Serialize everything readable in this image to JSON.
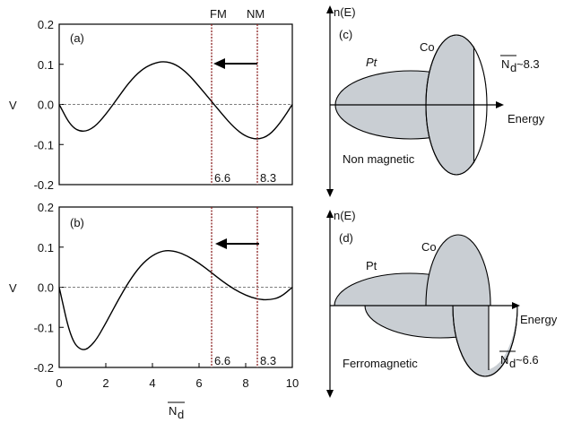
{
  "chart_data": [
    {
      "type": "line",
      "panel": "(a)",
      "ylabel": "V",
      "xlim": [
        0,
        10
      ],
      "ylim": [
        -0.2,
        0.2
      ],
      "yticks": [
        "0.2",
        "0.1",
        "0.0",
        "-0.1",
        "-0.2"
      ],
      "xticks": [],
      "top_labels": {
        "fm": "FM",
        "nm": "NM"
      },
      "markers": {
        "fm": "6.6",
        "nm": "8.3"
      },
      "series": [
        {
          "x": [
            0,
            0.5,
            1,
            1.5,
            2,
            2.5,
            3,
            3.5,
            4,
            4.5,
            5,
            5.5,
            6,
            6.5,
            7,
            7.5,
            8,
            8.5,
            9,
            9.5,
            10
          ],
          "values": [
            0,
            -0.055,
            -0.07,
            -0.058,
            -0.025,
            0.015,
            0.055,
            0.085,
            0.102,
            0.108,
            0.1,
            0.078,
            0.045,
            0.01,
            -0.025,
            -0.058,
            -0.08,
            -0.088,
            -0.078,
            -0.045,
            0
          ]
        }
      ],
      "grid": false
    },
    {
      "type": "line",
      "panel": "(b)",
      "ylabel": "V",
      "xlabel": "N_d",
      "xlim": [
        0,
        10
      ],
      "ylim": [
        -0.2,
        0.2
      ],
      "yticks": [
        "0.2",
        "0.1",
        "0.0",
        "-0.1",
        "-0.2"
      ],
      "xticks": [
        "0",
        "2",
        "4",
        "6",
        "8",
        "10"
      ],
      "markers": {
        "fm": "6.6",
        "nm": "8.3"
      },
      "series": [
        {
          "x": [
            0,
            0.5,
            1,
            1.5,
            2,
            2.5,
            3,
            3.5,
            4,
            4.5,
            5,
            5.5,
            6,
            6.5,
            7,
            7.5,
            8,
            8.5,
            9,
            9.5,
            10
          ],
          "values": [
            0,
            -0.13,
            -0.162,
            -0.14,
            -0.09,
            -0.035,
            0.015,
            0.055,
            0.08,
            0.092,
            0.09,
            0.078,
            0.06,
            0.038,
            0.015,
            -0.005,
            -0.02,
            -0.03,
            -0.032,
            -0.025,
            0
          ]
        }
      ],
      "grid": false
    }
  ],
  "panel_c": {
    "panel": "(c)",
    "yaxis": "n(E)",
    "xaxis": "Energy",
    "pt": "Pt",
    "co": "Co",
    "nd_symbol": "N",
    "nd_sub": "d",
    "nd_value": "~8.3",
    "caption": "Non magnetic"
  },
  "panel_d": {
    "panel": "(d)",
    "yaxis": "n(E)",
    "xaxis": "Energy",
    "pt": "Pt",
    "co": "Co",
    "nd_symbol": "N",
    "nd_sub": "d",
    "nd_value": "~6.6",
    "caption": "Ferromagnetic"
  }
}
